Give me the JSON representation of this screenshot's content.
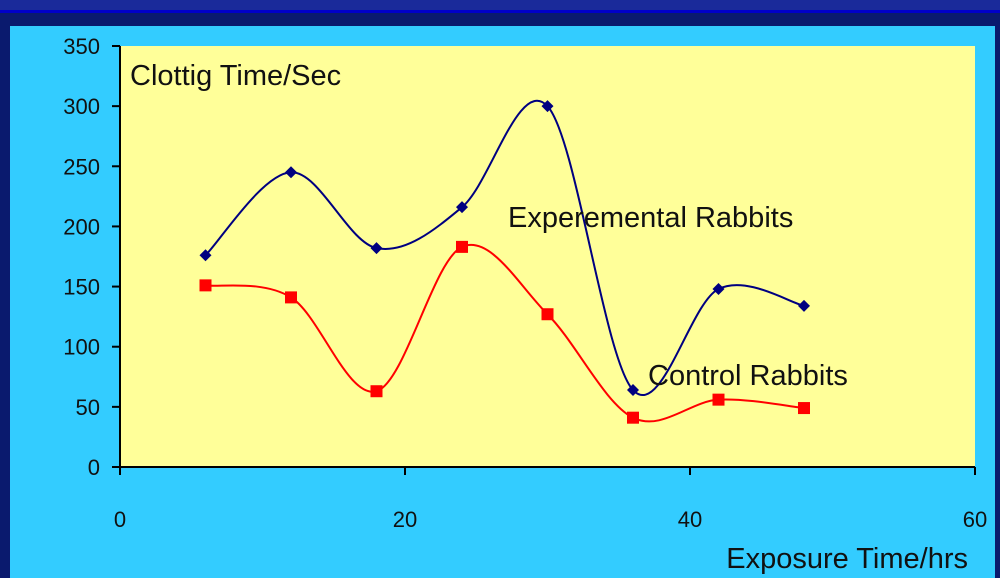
{
  "chart_data": {
    "type": "line",
    "title": "",
    "ylabel": "Clottig Time/Sec",
    "xlabel": "Exposure Time/hrs",
    "xlim": [
      0,
      60
    ],
    "ylim": [
      0,
      350
    ],
    "x_ticks": [
      0,
      20,
      40,
      60
    ],
    "y_ticks": [
      0,
      50,
      100,
      150,
      200,
      250,
      300,
      350
    ],
    "grid": false,
    "legend": "none",
    "colors": {
      "plot_bg": "#ffff99",
      "outer_bg": "#33ccff",
      "frame": "#0a1a6e"
    },
    "series": [
      {
        "name": "Experemental Rabbits",
        "color": "#000080",
        "marker": "diamond",
        "x": [
          6,
          12,
          18,
          24,
          30,
          36,
          42,
          48
        ],
        "y": [
          176,
          245,
          182,
          216,
          300,
          64,
          148,
          134
        ]
      },
      {
        "name": "Control Rabbits",
        "color": "#ff0000",
        "marker": "square",
        "x": [
          6,
          12,
          18,
          24,
          30,
          36,
          42,
          48
        ],
        "y": [
          151,
          141,
          63,
          183,
          127,
          41,
          56,
          49
        ]
      }
    ]
  }
}
